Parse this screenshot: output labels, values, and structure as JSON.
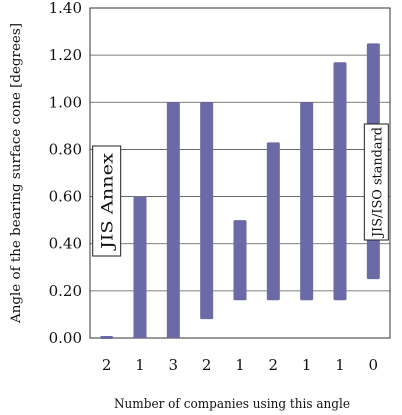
{
  "chart_data": {
    "type": "bar",
    "subtype": "floating-range",
    "categories": [
      "2",
      "1",
      "3",
      "2",
      "1",
      "2",
      "1",
      "1",
      "0"
    ],
    "ranges": [
      [
        0.0,
        0.0
      ],
      [
        0.0,
        0.6
      ],
      [
        0.0,
        1.0
      ],
      [
        0.08,
        1.0
      ],
      [
        0.16,
        0.5
      ],
      [
        0.16,
        0.83
      ],
      [
        0.16,
        1.0
      ],
      [
        0.16,
        1.17
      ],
      [
        0.25,
        1.25
      ]
    ],
    "xlabel": "Number of companies using this angle",
    "ylabel": "Angle of the bearing surface cone [degrees]",
    "ylim": [
      0.0,
      1.4
    ],
    "yticks": [
      "0.00",
      "0.20",
      "0.40",
      "0.60",
      "0.80",
      "1.00",
      "1.20",
      "1.40"
    ],
    "grid": "horizontal",
    "bar_color": "#6b6aa6",
    "annotations": [
      {
        "text": "JIS Annex",
        "near_category_index": 0
      },
      {
        "text": "JIS/ISO standard",
        "near_category_index": 8
      }
    ]
  }
}
